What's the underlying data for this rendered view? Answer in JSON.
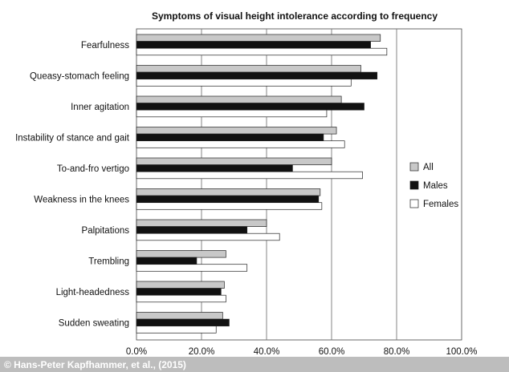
{
  "chart_data": {
    "type": "bar",
    "orientation": "horizontal",
    "title": "Symptoms of visual height intolerance according to frequency",
    "categories": [
      "Fearfulness",
      "Queasy-stomach feeling",
      "Inner agitation",
      "Instability of stance and gait",
      "To-and-fro vertigo",
      "Weakness in the knees",
      "Palpitations",
      "Trembling",
      "Light-headedness",
      "Sudden sweating"
    ],
    "series": [
      {
        "name": "All",
        "color": "#c8c8c8",
        "values": [
          75,
          69,
          63,
          61.5,
          60,
          56.5,
          40,
          27.5,
          27,
          26.5
        ]
      },
      {
        "name": "Males",
        "color": "#111111",
        "values": [
          72,
          74,
          70,
          57.5,
          48,
          56,
          34,
          18.5,
          26,
          28.5
        ]
      },
      {
        "name": "Females",
        "color": "#ffffff",
        "values": [
          77,
          66,
          58.5,
          64,
          69.5,
          57,
          44,
          34,
          27.5,
          24.5
        ]
      }
    ],
    "x_ticks": [
      "0.0%",
      "20.0%",
      "40.0%",
      "60.0%",
      "80.0%",
      "100.0%"
    ],
    "xlim": [
      0,
      100
    ],
    "grid": "vertical",
    "legend_position": "right"
  },
  "credit": "© Hans-Peter Kapfhammer, et al., (2015)"
}
